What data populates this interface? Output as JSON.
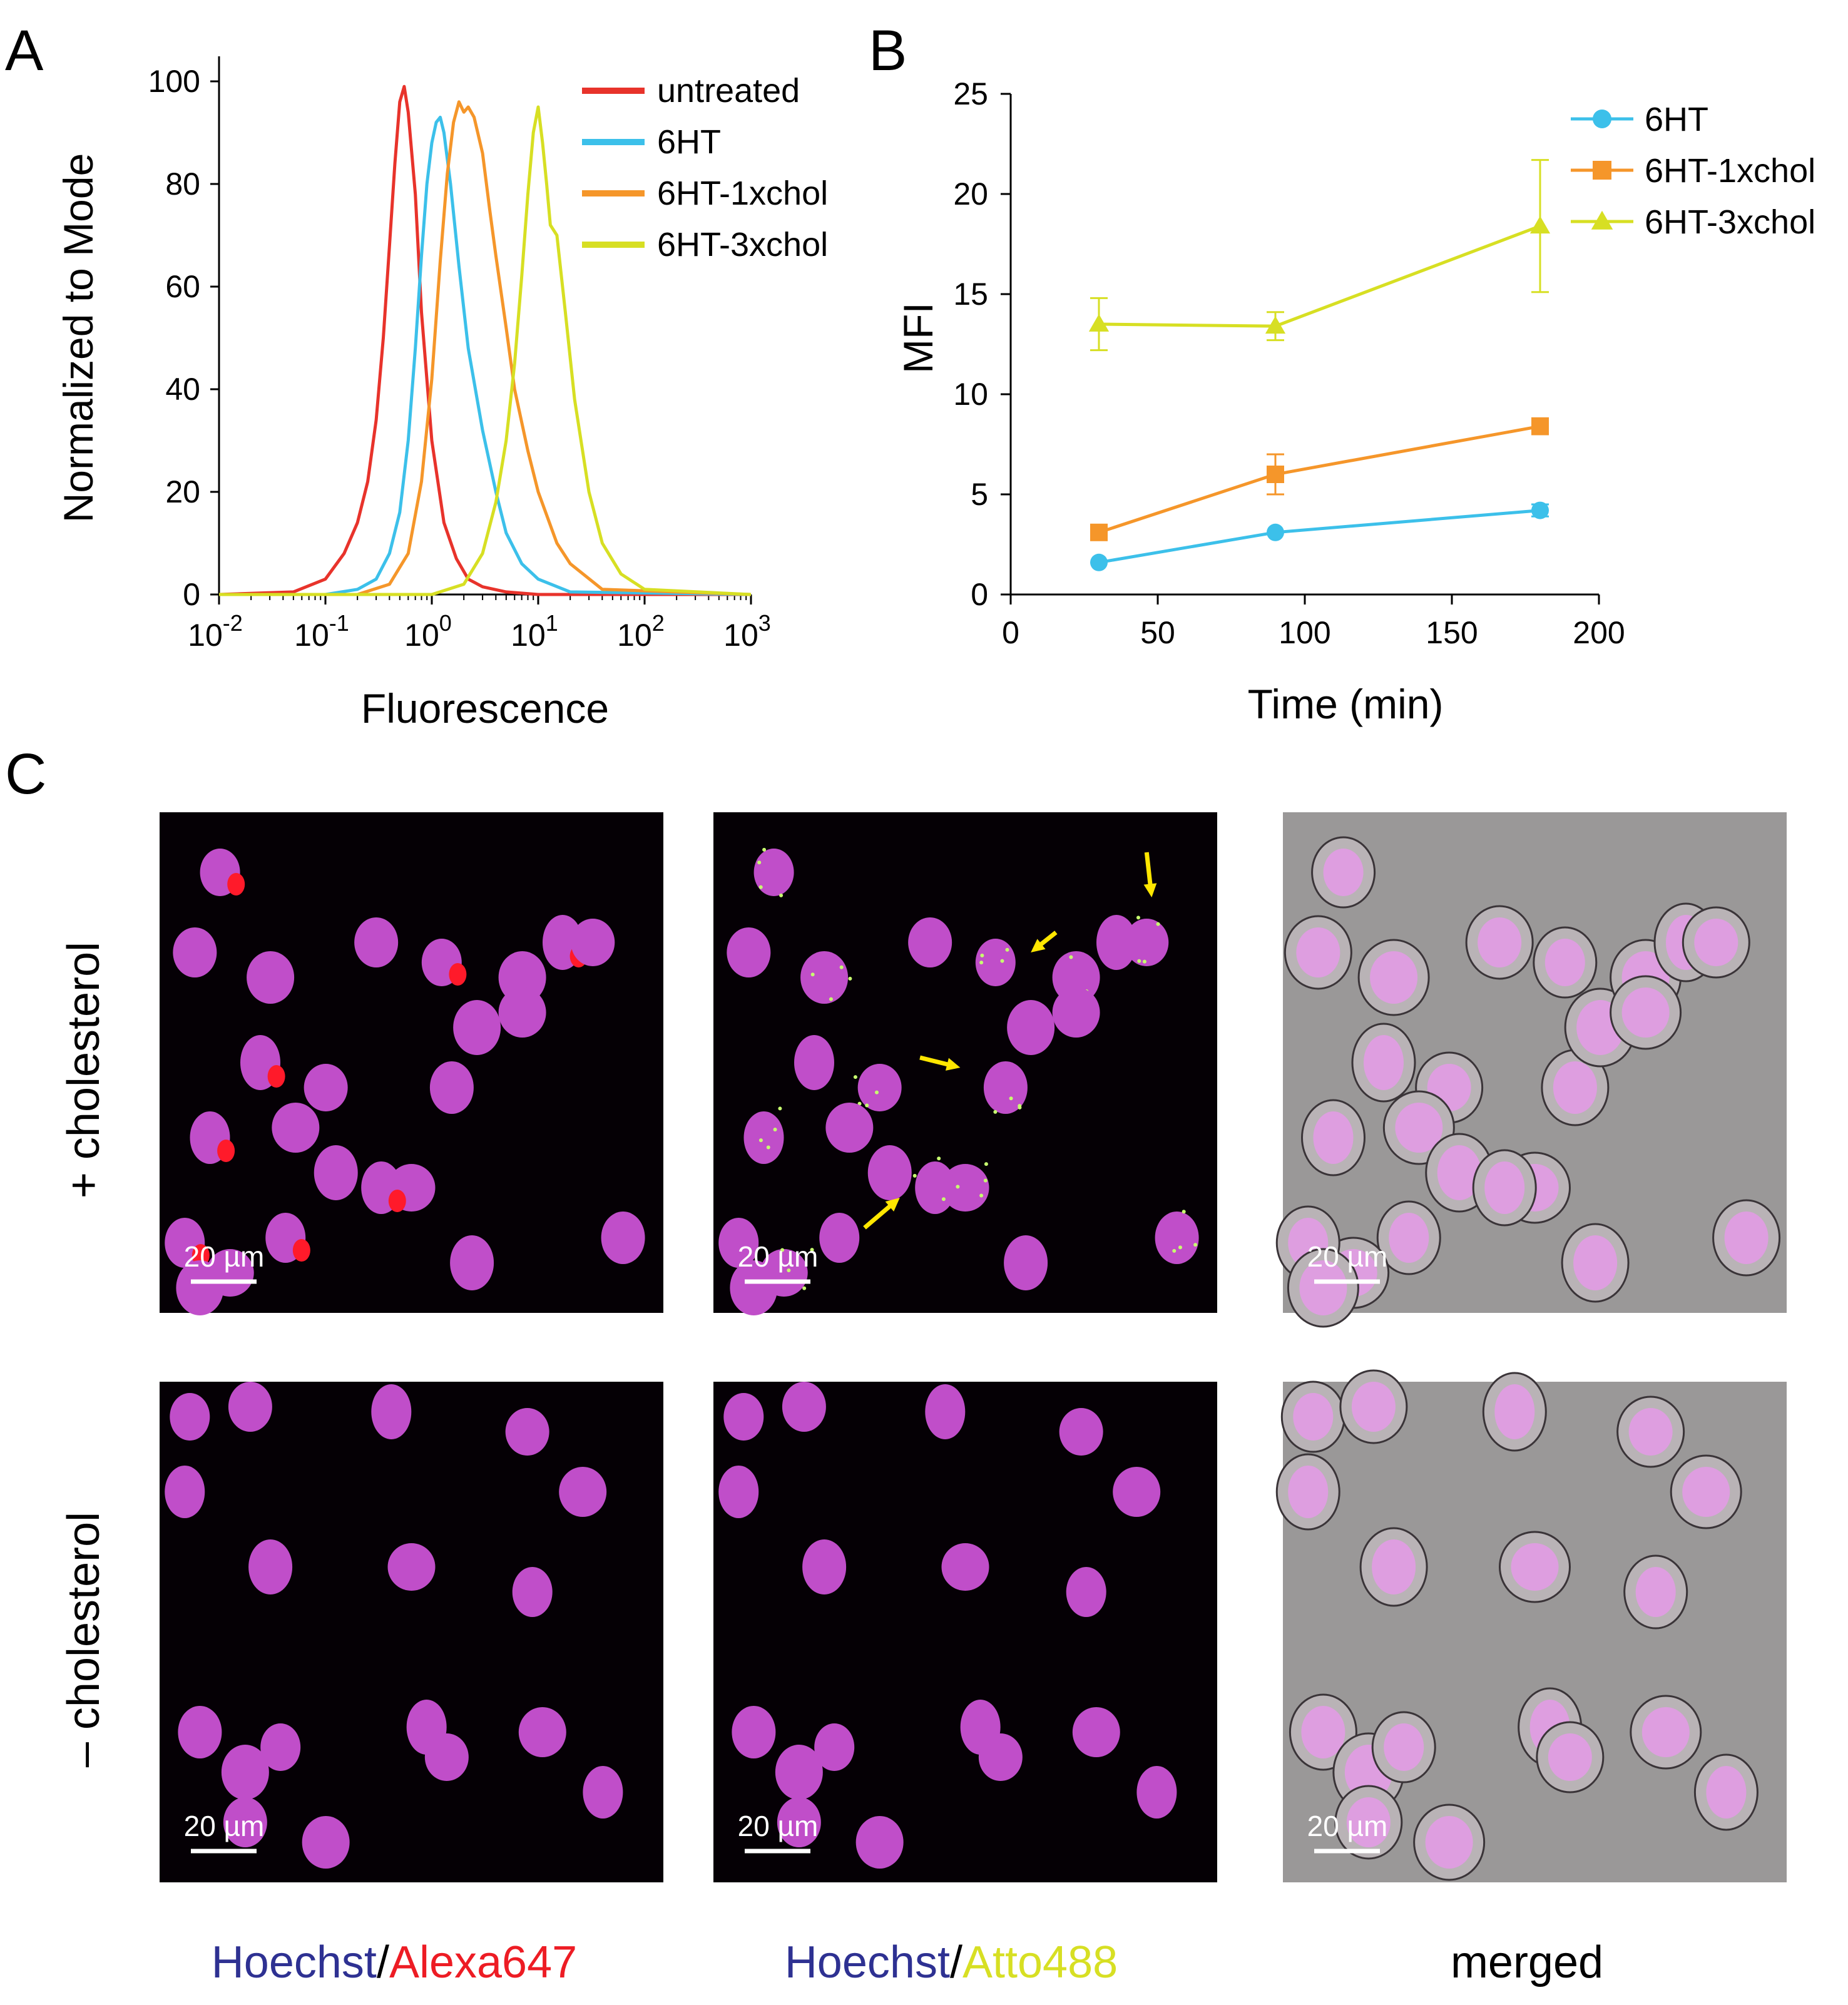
{
  "panels": {
    "a": "A",
    "b": "B",
    "c": "C"
  },
  "colors": {
    "untreated": "#e8332b",
    "6HT": "#3cc0ea",
    "6HT-1xchol": "#f5962a",
    "6HT-3xchol": "#d7df23",
    "nucleus": "#c04ec9",
    "alexa": "#ff1a2a",
    "atto": "#c8ff70",
    "arrow": "#ffe600",
    "hoechst_text": "#2e3192",
    "alexa_text": "#ed1c24",
    "atto_text": "#d7df23"
  },
  "chart_data": [
    {
      "panel": "A",
      "type": "line",
      "title": "",
      "xlabel": "Fluorescence",
      "ylabel": "Normalized to Mode",
      "xscale": "log",
      "xlim": [
        0.01,
        1000
      ],
      "ylim": [
        0,
        100
      ],
      "x_tick_labels": [
        {
          "base": "10",
          "exp": "-2"
        },
        {
          "base": "10",
          "exp": "-1"
        },
        {
          "base": "10",
          "exp": "0"
        },
        {
          "base": "10",
          "exp": "1"
        },
        {
          "base": "10",
          "exp": "2"
        },
        {
          "base": "10",
          "exp": "3"
        }
      ],
      "y_ticks": [
        "0",
        "20",
        "40",
        "60",
        "80",
        "100"
      ],
      "legend_position": "top-right",
      "series": [
        {
          "name": "untreated",
          "x": [
            0.01,
            0.05,
            0.1,
            0.15,
            0.2,
            0.25,
            0.3,
            0.35,
            0.4,
            0.45,
            0.5,
            0.55,
            0.6,
            0.7,
            0.8,
            1.0,
            1.3,
            1.7,
            2.2,
            3.0,
            5.0,
            10,
            1000
          ],
          "y": [
            0,
            0.5,
            3,
            8,
            14,
            22,
            34,
            50,
            68,
            84,
            96,
            99,
            94,
            78,
            55,
            30,
            14,
            7,
            3,
            1.5,
            0.5,
            0,
            0
          ]
        },
        {
          "name": "6HT",
          "x": [
            0.01,
            0.1,
            0.2,
            0.3,
            0.4,
            0.5,
            0.6,
            0.7,
            0.8,
            0.9,
            1.0,
            1.1,
            1.2,
            1.3,
            1.5,
            1.8,
            2.2,
            3.0,
            4.0,
            5.0,
            7.0,
            10,
            20,
            1000
          ],
          "y": [
            0,
            0,
            1,
            3,
            8,
            16,
            30,
            48,
            66,
            80,
            88,
            92,
            93,
            90,
            80,
            64,
            48,
            32,
            20,
            12,
            6,
            3,
            0.5,
            0
          ]
        },
        {
          "name": "6HT-1xchol",
          "x": [
            0.01,
            0.2,
            0.4,
            0.6,
            0.8,
            1.0,
            1.2,
            1.4,
            1.6,
            1.8,
            2.0,
            2.2,
            2.5,
            3.0,
            3.5,
            4.0,
            5.0,
            6.0,
            8.0,
            10,
            15,
            20,
            40,
            1000
          ],
          "y": [
            0,
            0,
            2,
            8,
            22,
            42,
            65,
            82,
            92,
            96,
            94,
            95,
            93,
            86,
            75,
            66,
            52,
            40,
            28,
            20,
            10,
            6,
            1,
            0
          ]
        },
        {
          "name": "6HT-3xchol",
          "x": [
            0.01,
            1.0,
            2.0,
            3.0,
            4.0,
            5.0,
            6.0,
            7.0,
            8.0,
            9.0,
            10,
            11,
            12,
            13,
            15,
            18,
            22,
            30,
            40,
            60,
            100,
            1000
          ],
          "y": [
            0,
            0,
            2,
            8,
            18,
            30,
            45,
            62,
            78,
            90,
            95,
            88,
            80,
            72,
            70,
            55,
            38,
            20,
            10,
            4,
            1,
            0
          ]
        }
      ]
    },
    {
      "panel": "B",
      "type": "line",
      "title": "",
      "xlabel": "Time (min)",
      "ylabel": "MFI",
      "xlim": [
        0,
        200
      ],
      "ylim": [
        0,
        25
      ],
      "x_ticks": [
        0,
        50,
        100,
        150,
        200
      ],
      "y_ticks": [
        0,
        5,
        10,
        15,
        20,
        25
      ],
      "legend_position": "top-right",
      "series": [
        {
          "name": "6HT",
          "marker": "circle",
          "x": [
            30,
            90,
            180
          ],
          "y": [
            1.6,
            3.1,
            4.2
          ],
          "err": [
            0.2,
            0.2,
            0.3
          ]
        },
        {
          "name": "6HT-1xchol",
          "marker": "square",
          "x": [
            30,
            90,
            180
          ],
          "y": [
            3.1,
            6.0,
            8.4
          ],
          "err": [
            0.3,
            1.0,
            0.4
          ]
        },
        {
          "name": "6HT-3xchol",
          "marker": "triangle",
          "x": [
            30,
            90,
            180
          ],
          "y": [
            13.5,
            13.4,
            18.4
          ],
          "err": [
            1.3,
            0.7,
            3.3
          ]
        }
      ]
    }
  ],
  "microscopy": {
    "row_labels": [
      "+ cholesterol",
      "– cholesterol"
    ],
    "scale_bar": "20 µm",
    "column_labels": [
      {
        "parts": [
          "Hoechst",
          "/",
          "Alexa647"
        ]
      },
      {
        "parts": [
          "Hoechst",
          "/",
          "Atto488"
        ]
      },
      {
        "parts": [
          "merged"
        ]
      }
    ]
  }
}
